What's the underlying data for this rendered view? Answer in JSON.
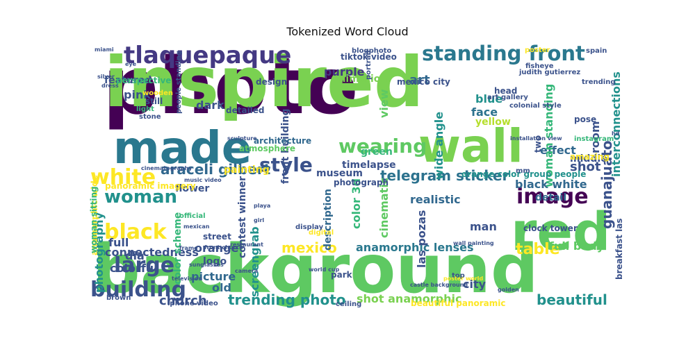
{
  "chart_data": {
    "type": "wordcloud",
    "title": "Tokenized Word Cloud",
    "words": [
      {
        "text": "photo",
        "color": "#440154"
      },
      {
        "text": "inspired",
        "color": "#7ad151"
      },
      {
        "text": "background",
        "color": "#5ec962"
      },
      {
        "text": "made",
        "color": "#2a788e"
      },
      {
        "text": "wall",
        "color": "#7ad151"
      },
      {
        "text": "red",
        "color": "#5ec962"
      },
      {
        "text": "tlaquepaque",
        "color": "#443983"
      },
      {
        "text": "standing front",
        "color": "#2a788e"
      },
      {
        "text": "wearing",
        "color": "#5ec962"
      },
      {
        "text": "style",
        "color": "#3b528b"
      },
      {
        "text": "white",
        "color": "#fde725"
      },
      {
        "text": "woman",
        "color": "#21918c"
      },
      {
        "text": "black",
        "color": "#fde725"
      },
      {
        "text": "large",
        "color": "#3b528b"
      },
      {
        "text": "building",
        "color": "#3b528b"
      },
      {
        "text": "image",
        "color": "#440154"
      },
      {
        "text": "table",
        "color": "#fde725"
      },
      {
        "text": "beautiful",
        "color": "#21918c"
      },
      {
        "text": "guanajuato",
        "color": "#3b528b"
      },
      {
        "text": "trending photo",
        "color": "#21918c"
      },
      {
        "text": "araceli gilbert",
        "color": "#31688e"
      },
      {
        "text": "telegram sticker",
        "color": "#2c728e"
      },
      {
        "text": "anamorphic lenses",
        "color": "#2a788e"
      },
      {
        "text": "mexico",
        "color": "#fde725"
      },
      {
        "text": "church",
        "color": "#3b528b"
      },
      {
        "text": "shot anamorphic",
        "color": "#7ad151"
      },
      {
        "text": "full body",
        "color": "#5ec962"
      },
      {
        "text": "black white",
        "color": "#31688e"
      },
      {
        "text": "interconnections",
        "color": "#21918c"
      },
      {
        "text": "effect",
        "color": "#31688e"
      },
      {
        "text": "shot",
        "color": "#3b528b"
      },
      {
        "text": "woman standing",
        "color": "#35b779"
      },
      {
        "text": "realistic",
        "color": "#31688e"
      },
      {
        "text": "wide angle",
        "color": "#21918c"
      },
      {
        "text": "connectedness",
        "color": "#3b528b"
      },
      {
        "text": "photography",
        "color": "#21918c"
      },
      {
        "text": "color scheme",
        "color": "#35b779"
      },
      {
        "text": "screengrab",
        "color": "#21918c"
      },
      {
        "text": "contest winner",
        "color": "#3b528b"
      },
      {
        "text": "front building",
        "color": "#3b528b"
      },
      {
        "text": "description",
        "color": "#31688e"
      },
      {
        "text": "cinematic",
        "color": "#5ec962"
      },
      {
        "text": "color 3d",
        "color": "#35b779"
      },
      {
        "text": "las pozas",
        "color": "#3b528b"
      },
      {
        "text": "art",
        "color": "#31688e"
      },
      {
        "text": "blue",
        "color": "#21918c"
      },
      {
        "text": "yellow",
        "color": "#b5de2b"
      },
      {
        "text": "face",
        "color": "#2c728e"
      },
      {
        "text": "featured",
        "color": "#3b528b"
      },
      {
        "text": "pink",
        "color": "#3b528b"
      },
      {
        "text": "dark",
        "color": "#3b528b"
      },
      {
        "text": "purple",
        "color": "#443983"
      },
      {
        "text": "animation",
        "color": "#7ad151"
      },
      {
        "text": "view",
        "color": "#5ec962"
      },
      {
        "text": "flower",
        "color": "#3b528b"
      },
      {
        "text": "painting",
        "color": "#fde725"
      },
      {
        "text": "museum",
        "color": "#3b528b"
      },
      {
        "text": "timelapse",
        "color": "#3b528b"
      },
      {
        "text": "green",
        "color": "#35b779"
      },
      {
        "text": "room",
        "color": "#3b528b"
      },
      {
        "text": "middle",
        "color": "#3b528b"
      },
      {
        "text": "detail",
        "color": "#31688e"
      },
      {
        "text": "man",
        "color": "#3b528b"
      },
      {
        "text": "full",
        "color": "#3b528b"
      },
      {
        "text": "dia",
        "color": "#3b528b"
      },
      {
        "text": "colorful",
        "color": "#3b528b"
      },
      {
        "text": "orange",
        "color": "#3b528b"
      },
      {
        "text": "picture",
        "color": "#31688e"
      },
      {
        "text": "logo",
        "color": "#3b528b"
      },
      {
        "text": "old",
        "color": "#31688e"
      },
      {
        "text": "city",
        "color": "#3b528b"
      },
      {
        "text": "architecture",
        "color": "#31688e"
      },
      {
        "text": "atmosphere",
        "color": "#5ec962"
      },
      {
        "text": "detailed",
        "color": "#3b528b"
      },
      {
        "text": "design",
        "color": "#3b528b"
      },
      {
        "text": "perspective",
        "color": "#35b779"
      },
      {
        "text": "mexico city",
        "color": "#3b528b"
      },
      {
        "text": "tiktok video",
        "color": "#3b528b"
      },
      {
        "text": "panoramic imagery",
        "color": "#fde725"
      },
      {
        "text": "iphone video",
        "color": "#3b528b"
      },
      {
        "text": "clock tower",
        "color": "#3b528b"
      },
      {
        "text": "breakfast las",
        "color": "#3b528b"
      },
      {
        "text": "anamorphic wide",
        "color": "#fde725"
      },
      {
        "text": "beautiful panoramic",
        "color": "#fde725"
      },
      {
        "text": "orange color group people",
        "color": "#21918c"
      },
      {
        "text": "photograph",
        "color": "#3b528b"
      },
      {
        "text": "street",
        "color": "#3b528b"
      },
      {
        "text": "two",
        "color": "#3b528b"
      },
      {
        "text": "amazing",
        "color": "#fde725"
      },
      {
        "text": "pose",
        "color": "#3b528b"
      },
      {
        "text": "mm",
        "color": "#3b528b"
      },
      {
        "text": "park",
        "color": "#3b528b"
      },
      {
        "text": "top",
        "color": "#3b528b"
      },
      {
        "text": "instagram",
        "color": "#35b779"
      },
      {
        "text": "woman sitting",
        "color": "#35b779"
      },
      {
        "text": "still",
        "color": "#3b528b"
      },
      {
        "text": "wooden",
        "color": "#fde725"
      },
      {
        "text": "stone",
        "color": "#3b528b"
      },
      {
        "text": "light",
        "color": "#35b779"
      },
      {
        "text": "brown",
        "color": "#3b528b"
      },
      {
        "text": "head",
        "color": "#3b528b"
      },
      {
        "text": "art gallery",
        "color": "#3b528b"
      },
      {
        "text": "colonial style",
        "color": "#3b528b"
      },
      {
        "text": "fisheye",
        "color": "#3b528b"
      },
      {
        "text": "judith gutierrez",
        "color": "#3b528b"
      },
      {
        "text": "spain",
        "color": "#3b528b"
      },
      {
        "text": "trending",
        "color": "#3b528b"
      },
      {
        "text": "poster",
        "color": "#fde725"
      },
      {
        "text": "blogphoto",
        "color": "#3b528b"
      },
      {
        "text": "people standing",
        "color": "#3b528b"
      },
      {
        "text": "digital",
        "color": "#fde725"
      },
      {
        "text": "world cup",
        "color": "#3b528b"
      },
      {
        "text": "ceiling",
        "color": "#3b528b"
      },
      {
        "text": "mexican",
        "color": "#3b528b"
      },
      {
        "text": "frame",
        "color": "#3b528b"
      },
      {
        "text": "official",
        "color": "#35b779"
      },
      {
        "text": "sunglasses",
        "color": "#3b528b"
      },
      {
        "text": "playa",
        "color": "#3b528b"
      },
      {
        "text": "girl",
        "color": "#3b528b"
      },
      {
        "text": "display",
        "color": "#3b528b"
      },
      {
        "text": "portrait",
        "color": "#3b528b"
      },
      {
        "text": "dress",
        "color": "#3b528b"
      },
      {
        "text": "sculpture",
        "color": "#3b528b"
      },
      {
        "text": "golden",
        "color": "#3b528b"
      },
      {
        "text": "poster world",
        "color": "#fde725"
      },
      {
        "text": "castle background",
        "color": "#3b528b"
      },
      {
        "text": "cinematography",
        "color": "#3b528b"
      },
      {
        "text": "music video",
        "color": "#3b528b"
      },
      {
        "text": "television",
        "color": "#3b528b"
      },
      {
        "text": "front church",
        "color": "#3b528b"
      },
      {
        "text": "restaurant",
        "color": "#3b528b"
      },
      {
        "text": "camera",
        "color": "#3b528b"
      },
      {
        "text": "silver",
        "color": "#3b528b"
      },
      {
        "text": "wall painting",
        "color": "#3b528b"
      },
      {
        "text": "installation view",
        "color": "#3b528b"
      },
      {
        "text": "miami",
        "color": "#3b528b"
      },
      {
        "text": "eye",
        "color": "#3b528b"
      },
      {
        "text": "hd",
        "color": "#3b528b"
      }
    ]
  }
}
